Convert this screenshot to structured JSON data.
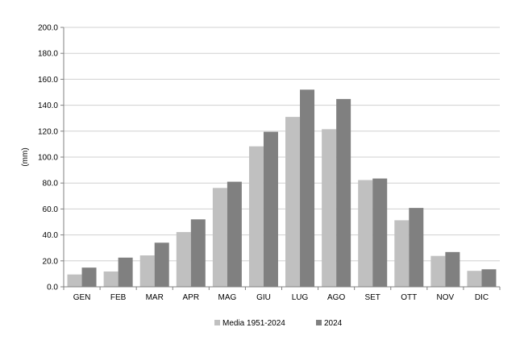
{
  "chart_data": {
    "type": "bar",
    "title": "",
    "xlabel": "",
    "ylabel": "(mm)",
    "ylim": [
      0,
      200
    ],
    "yticks": [
      "0.0",
      "20.0",
      "40.0",
      "60.0",
      "80.0",
      "100.0",
      "120.0",
      "140.0",
      "160.0",
      "180.0",
      "200.0"
    ],
    "grid": true,
    "legend_position": "bottom",
    "categories": [
      "GEN",
      "FEB",
      "MAR",
      "APR",
      "MAG",
      "GIU",
      "LUG",
      "AGO",
      "SET",
      "OTT",
      "NOV",
      "DIC"
    ],
    "series": [
      {
        "name": "Media 1951-2024",
        "color": "#c0c0c0",
        "values": [
          9.5,
          11.8,
          24.2,
          42.2,
          76.2,
          108.3,
          131.0,
          121.5,
          82.3,
          51.3,
          23.8,
          12.3
        ]
      },
      {
        "name": "2024",
        "color": "#808080",
        "values": [
          14.8,
          22.5,
          34.0,
          52.0,
          81.0,
          119.5,
          152.0,
          144.8,
          83.5,
          60.8,
          26.8,
          13.5
        ]
      }
    ]
  }
}
